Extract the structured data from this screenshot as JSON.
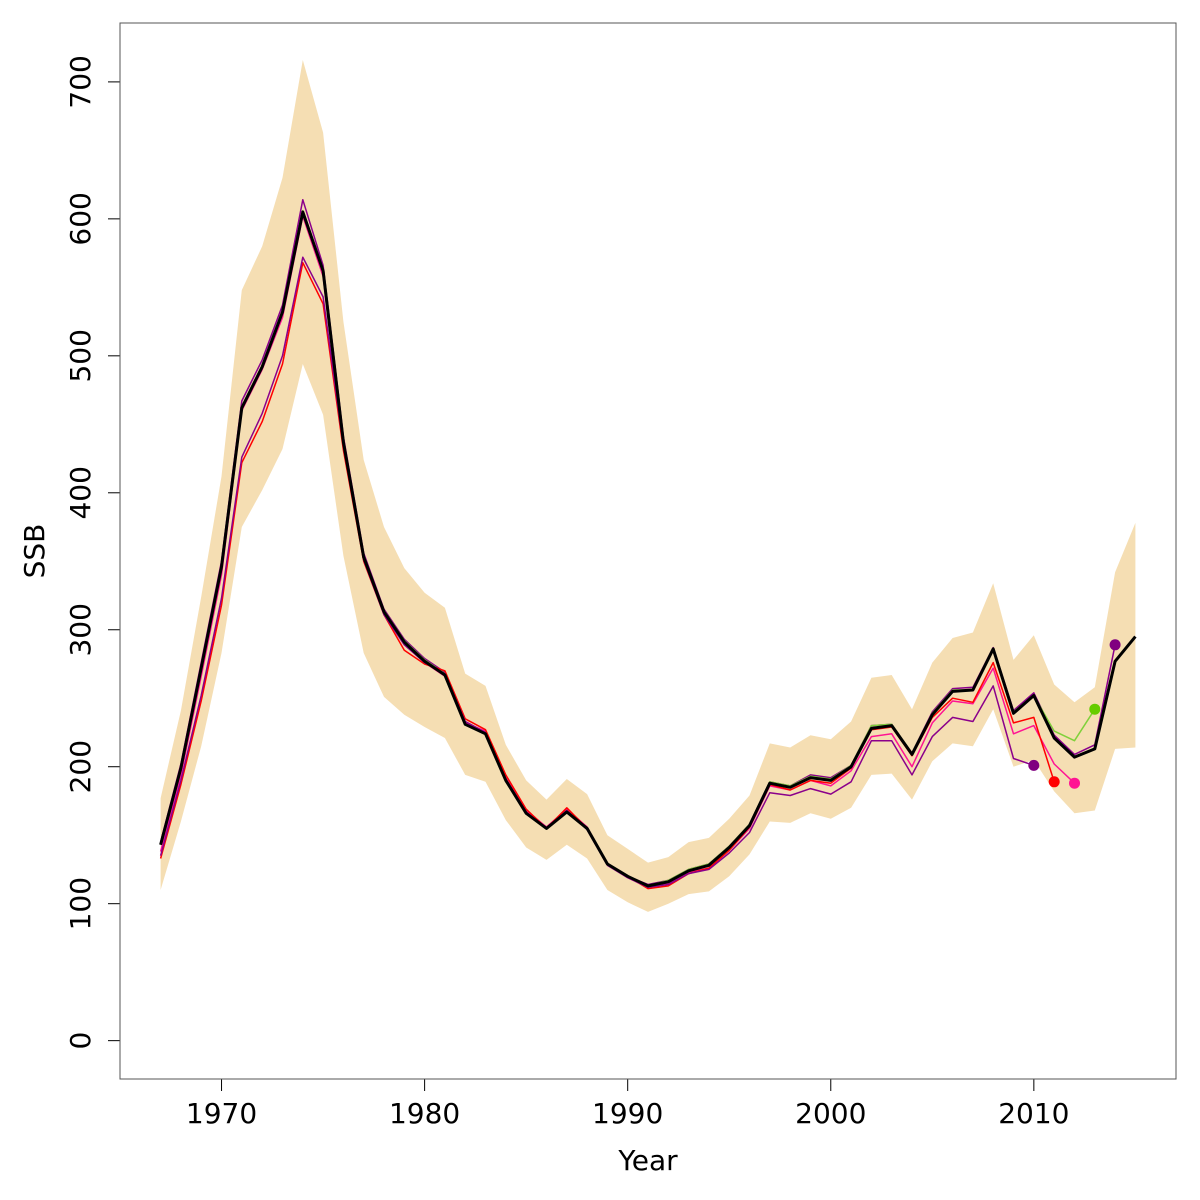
{
  "chart_data": {
    "type": "line",
    "xlabel": "Year",
    "ylabel": "SSB",
    "xlim": [
      1965,
      2017
    ],
    "ylim": [
      -28,
      743
    ],
    "x_ticks": [
      1970,
      1980,
      1990,
      2000,
      2010
    ],
    "y_ticks": [
      0,
      100,
      200,
      300,
      400,
      500,
      600,
      700
    ],
    "grid": false,
    "legend": "none",
    "band": {
      "color": "#f5deb3",
      "x": [
        1967,
        1968,
        1969,
        1970,
        1971,
        1972,
        1973,
        1974,
        1975,
        1976,
        1977,
        1978,
        1979,
        1980,
        1981,
        1982,
        1983,
        1984,
        1985,
        1986,
        1987,
        1988,
        1989,
        1990,
        1991,
        1992,
        1993,
        1994,
        1995,
        1996,
        1997,
        1998,
        1999,
        2000,
        2001,
        2002,
        2003,
        2004,
        2005,
        2006,
        2007,
        2008,
        2009,
        2010,
        2011,
        2012,
        2013,
        2014,
        2015
      ],
      "upper": [
        177,
        241,
        324,
        412,
        548,
        580,
        630,
        716,
        663,
        525,
        424,
        375,
        345,
        327,
        316,
        268,
        259,
        216,
        190,
        176,
        191,
        180,
        150,
        140,
        130,
        134,
        145,
        148,
        162,
        179,
        217,
        214,
        223,
        220,
        233,
        265,
        267,
        242,
        276,
        294,
        298,
        334,
        278,
        296,
        260,
        247,
        258,
        342,
        378
      ],
      "lower": [
        110,
        160,
        215,
        283,
        375,
        402,
        432,
        494,
        457,
        354,
        283,
        251,
        238,
        229,
        221,
        194,
        189,
        161,
        141,
        132,
        143,
        133,
        110,
        101,
        94,
        100,
        107,
        109,
        120,
        136,
        160,
        159,
        166,
        162,
        170,
        194,
        195,
        176,
        204,
        217,
        215,
        242,
        200,
        205,
        182,
        166,
        168,
        213,
        214
      ]
    },
    "series": [
      {
        "color": "#000000",
        "width": 3,
        "x": [
          1967,
          1968,
          1969,
          1970,
          1971,
          1972,
          1973,
          1974,
          1975,
          1976,
          1977,
          1978,
          1979,
          1980,
          1981,
          1982,
          1983,
          1984,
          1985,
          1986,
          1987,
          1988,
          1989,
          1990,
          1991,
          1992,
          1993,
          1994,
          1995,
          1996,
          1997,
          1998,
          1999,
          2000,
          2001,
          2002,
          2003,
          2004,
          2005,
          2006,
          2007,
          2008,
          2009,
          2010,
          2011,
          2012,
          2013,
          2014,
          2015
        ],
        "values": [
          143,
          199,
          272,
          346,
          462,
          492,
          532,
          605,
          562,
          437,
          353,
          313,
          291,
          277,
          267,
          231,
          224,
          190,
          166,
          155,
          167,
          155,
          129,
          120,
          113,
          116,
          124,
          128,
          141,
          157,
          188,
          185,
          192,
          190,
          200,
          228,
          230,
          209,
          238,
          255,
          256,
          286,
          239,
          252,
          221,
          207,
          213,
          277,
          295
        ]
      },
      {
        "color": "#8b008b",
        "width": 1.5,
        "x": [
          1967,
          1968,
          1969,
          1970,
          1971,
          1972,
          1973,
          1974,
          1975,
          1976,
          1977,
          1978,
          1979,
          1980,
          1981,
          1982,
          1983,
          1984,
          1985,
          1986,
          1987,
          1988,
          1989,
          1990,
          1991,
          1992,
          1993,
          1994,
          1995,
          1996,
          1997,
          1998,
          1999,
          2000,
          2001,
          2002,
          2003,
          2004,
          2005,
          2006,
          2007,
          2008,
          2009,
          2010,
          2011,
          2012,
          2013,
          2014
        ],
        "values": [
          145,
          202,
          276,
          350,
          467,
          497,
          537,
          614,
          566,
          441,
          356,
          315,
          293,
          279,
          269,
          233,
          225,
          191,
          167,
          155,
          168,
          155,
          129,
          120,
          114,
          117,
          125,
          129,
          142,
          158,
          189,
          186,
          194,
          192,
          201,
          230,
          231,
          210,
          240,
          257,
          258,
          287,
          241,
          254,
          223,
          209,
          216,
          289
        ]
      },
      {
        "color": "#7fd13b",
        "width": 1.5,
        "x": [
          1967,
          1968,
          1969,
          1970,
          1971,
          1972,
          1973,
          1974,
          1975,
          1976,
          1977,
          1978,
          1979,
          1980,
          1981,
          1982,
          1983,
          1984,
          1985,
          1986,
          1987,
          1988,
          1989,
          1990,
          1991,
          1992,
          1993,
          1994,
          1995,
          1996,
          1997,
          1998,
          1999,
          2000,
          2001,
          2002,
          2003,
          2004,
          2005,
          2006,
          2007,
          2008,
          2009,
          2010,
          2011,
          2012,
          2013
        ],
        "values": [
          143,
          200,
          273,
          347,
          463,
          493,
          533,
          606,
          563,
          438,
          354,
          314,
          292,
          278,
          268,
          232,
          225,
          191,
          167,
          155,
          168,
          155,
          129,
          120,
          113,
          117,
          125,
          129,
          142,
          158,
          189,
          186,
          193,
          191,
          201,
          230,
          231,
          210,
          239,
          256,
          256,
          286,
          240,
          252,
          226,
          219,
          242
        ]
      },
      {
        "color": "#ff1493",
        "width": 1.5,
        "x": [
          1967,
          1968,
          1969,
          1970,
          1971,
          1972,
          1973,
          1974,
          1975,
          1976,
          1977,
          1978,
          1979,
          1980,
          1981,
          1982,
          1983,
          1984,
          1985,
          1986,
          1987,
          1988,
          1989,
          1990,
          1991,
          1992,
          1993,
          1994,
          1995,
          1996,
          1997,
          1998,
          1999,
          2000,
          2001,
          2002,
          2003,
          2004,
          2005,
          2006,
          2007,
          2008,
          2009,
          2010,
          2011,
          2012
        ],
        "values": [
          138,
          194,
          266,
          340,
          460,
          490,
          528,
          602,
          558,
          434,
          351,
          312,
          290,
          276,
          266,
          232,
          226,
          192,
          168,
          156,
          169,
          156,
          129,
          119,
          112,
          115,
          123,
          126,
          139,
          155,
          186,
          183,
          190,
          186,
          197,
          222,
          224,
          200,
          232,
          248,
          246,
          272,
          224,
          230,
          202,
          188
        ]
      },
      {
        "color": "#ff0000",
        "width": 1.5,
        "x": [
          1967,
          1968,
          1969,
          1970,
          1971,
          1972,
          1973,
          1974,
          1975,
          1976,
          1977,
          1978,
          1979,
          1980,
          1981,
          1982,
          1983,
          1984,
          1985,
          1986,
          1987,
          1988,
          1989,
          1990,
          1991,
          1992,
          1993,
          1994,
          1995,
          1996,
          1997,
          1998,
          1999,
          2000,
          2001,
          2002,
          2003,
          2004,
          2005,
          2006,
          2007,
          2008,
          2009,
          2010,
          2011
        ],
        "values": [
          133,
          187,
          248,
          318,
          422,
          452,
          494,
          568,
          538,
          431,
          350,
          311,
          285,
          275,
          270,
          235,
          227,
          194,
          169,
          155,
          170,
          155,
          129,
          120,
          111,
          113,
          122,
          126,
          139,
          156,
          187,
          183,
          190,
          188,
          199,
          227,
          229,
          208,
          236,
          250,
          247,
          276,
          232,
          236,
          189
        ]
      },
      {
        "color": "#8b008b",
        "width": 1.5,
        "x": [
          1967,
          1968,
          1969,
          1970,
          1971,
          1972,
          1973,
          1974,
          1975,
          1976,
          1977,
          1978,
          1979,
          1980,
          1981,
          1982,
          1983,
          1984,
          1985,
          1986,
          1987,
          1988,
          1989,
          1990,
          1991,
          1992,
          1993,
          1994,
          1995,
          1996,
          1997,
          1998,
          1999,
          2000,
          2001,
          2002,
          2003,
          2004,
          2005,
          2006,
          2007,
          2008,
          2009,
          2010
        ],
        "values": [
          135,
          190,
          252,
          323,
          426,
          458,
          500,
          572,
          543,
          434,
          351,
          311,
          289,
          276,
          268,
          233,
          225,
          191,
          167,
          155,
          168,
          154,
          128,
          119,
          112,
          114,
          122,
          125,
          137,
          152,
          181,
          179,
          184,
          180,
          189,
          219,
          219,
          194,
          222,
          236,
          233,
          259,
          206,
          201
        ]
      }
    ],
    "endpoints": [
      {
        "x": 2010,
        "y": 201,
        "color": "#800080"
      },
      {
        "x": 2011,
        "y": 189,
        "color": "#ff0000"
      },
      {
        "x": 2012,
        "y": 188,
        "color": "#ff1493"
      },
      {
        "x": 2013,
        "y": 242,
        "color": "#66cc00"
      },
      {
        "x": 2014,
        "y": 289,
        "color": "#800080"
      }
    ]
  }
}
